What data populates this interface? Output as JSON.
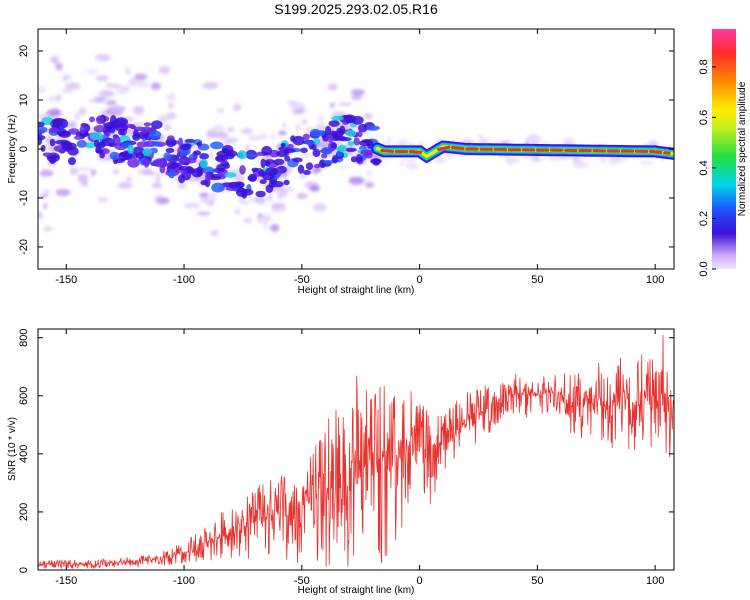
{
  "title": "S199.2025.293.02.05.R16",
  "colors": {
    "snr_line": "#e8322e",
    "spectrum_core": "#e8322e",
    "spectrum_dense": "#3a10d8",
    "spectrum_faint": "#c9a6f5",
    "axis": "#000000",
    "background": "#ffffff"
  },
  "chart_data": [
    {
      "type": "heatmap",
      "name": "spectrogram",
      "title": "",
      "xlabel": "Height of straight line (km)",
      "ylabel": "Frequency (Hz)",
      "xlim": [
        -162,
        108
      ],
      "ylim": [
        -24.5,
        24.5
      ],
      "xticks": [
        -150,
        -100,
        -50,
        0,
        50,
        100
      ],
      "yticks": [
        -20,
        -10,
        0,
        10,
        20
      ],
      "grid": false,
      "ridge_frequency": [
        {
          "x": -162,
          "y": 2.0
        },
        {
          "x": -130,
          "y": 2.0
        },
        {
          "x": -110,
          "y": 0.5
        },
        {
          "x": -100,
          "y": -2.0
        },
        {
          "x": -80,
          "y": -4.5
        },
        {
          "x": -70,
          "y": -5.5
        },
        {
          "x": -55,
          "y": -2.0
        },
        {
          "x": -40,
          "y": 1.0
        },
        {
          "x": -30,
          "y": 2.5
        },
        {
          "x": -20,
          "y": 0.5
        },
        {
          "x": -15,
          "y": -0.5
        },
        {
          "x": 0,
          "y": -0.5
        },
        {
          "x": 3,
          "y": -1.5
        },
        {
          "x": 10,
          "y": 0.5
        },
        {
          "x": 20,
          "y": 0.0
        },
        {
          "x": 50,
          "y": -0.2
        },
        {
          "x": 100,
          "y": -0.5
        },
        {
          "x": 108,
          "y": -1.0
        }
      ],
      "colorbar": {
        "label": "Normalized spectral amplitude",
        "range": [
          0.0,
          0.95
        ],
        "ticks": [
          "0.0",
          "0.2",
          "0.4",
          "0.6",
          "0.8"
        ],
        "tick_values": [
          0.0,
          0.2,
          0.4,
          0.6,
          0.8
        ]
      }
    },
    {
      "type": "line",
      "name": "snr",
      "title": "",
      "xlabel": "Height of straight line (km)",
      "ylabel": "SNR (10 * v/v)",
      "xlim": [
        -162,
        108
      ],
      "ylim": [
        0,
        830
      ],
      "xticks": [
        -150,
        -100,
        -50,
        0,
        50,
        100
      ],
      "yticks": [
        0,
        200,
        400,
        600,
        800
      ],
      "grid": false,
      "series": [
        {
          "name": "SNR",
          "x": [
            -162,
            -150,
            -140,
            -130,
            -120,
            -110,
            -100,
            -95,
            -90,
            -85,
            -80,
            -75,
            -70,
            -65,
            -60,
            -55,
            -50,
            -45,
            -40,
            -35,
            -30,
            -25,
            -20,
            -15,
            -10,
            -5,
            0,
            5,
            10,
            15,
            20,
            25,
            30,
            35,
            40,
            45,
            50,
            55,
            60,
            65,
            70,
            75,
            80,
            85,
            90,
            95,
            100,
            105,
            108
          ],
          "mid": [
            20,
            20,
            20,
            25,
            30,
            40,
            60,
            75,
            95,
            115,
            130,
            150,
            165,
            180,
            195,
            210,
            225,
            245,
            270,
            300,
            340,
            370,
            380,
            385,
            395,
            430,
            400,
            430,
            440,
            470,
            510,
            540,
            560,
            590,
            610,
            600,
            600,
            610,
            605,
            560,
            570,
            580,
            550,
            590,
            580,
            565,
            610,
            600,
            580
          ],
          "upper": [
            35,
            35,
            35,
            40,
            45,
            60,
            100,
            130,
            160,
            190,
            230,
            250,
            280,
            310,
            330,
            340,
            380,
            420,
            500,
            620,
            660,
            680,
            640,
            660,
            600,
            660,
            580,
            540,
            530,
            580,
            620,
            630,
            650,
            660,
            680,
            650,
            650,
            680,
            700,
            680,
            700,
            720,
            710,
            780,
            730,
            760,
            800,
            830,
            760
          ],
          "lower": [
            5,
            5,
            5,
            8,
            10,
            15,
            20,
            25,
            30,
            40,
            40,
            30,
            40,
            50,
            40,
            30,
            20,
            10,
            5,
            5,
            5,
            10,
            20,
            5,
            80,
            180,
            280,
            220,
            330,
            380,
            420,
            440,
            470,
            500,
            520,
            480,
            520,
            520,
            510,
            460,
            450,
            450,
            400,
            430,
            400,
            420,
            420,
            400,
            340
          ]
        }
      ]
    }
  ]
}
